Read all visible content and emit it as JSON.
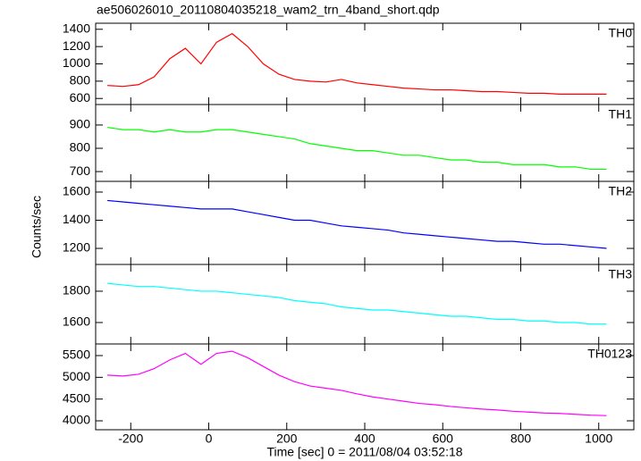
{
  "title": "ae506026010_20110804035218_wam2_trn_4band_short.qdp",
  "x_label": "Time [sec] 0 = 2011/08/04 03:52:18",
  "y_label": "Counts/sec",
  "xlim": [
    -290,
    1090
  ],
  "xticks": [
    -200,
    0,
    200,
    400,
    600,
    800,
    1000
  ],
  "x": [
    -260,
    -220,
    -180,
    -140,
    -100,
    -60,
    -20,
    20,
    60,
    100,
    140,
    180,
    220,
    260,
    300,
    340,
    380,
    420,
    460,
    500,
    540,
    580,
    620,
    660,
    700,
    740,
    780,
    820,
    860,
    900,
    940,
    980,
    1020
  ],
  "chart_data": [
    {
      "type": "line",
      "label": "TH0",
      "color": "#ff0000",
      "ylim": [
        530,
        1470
      ],
      "yticks": [
        600,
        800,
        1000,
        1200,
        1400
      ],
      "values": [
        750,
        740,
        760,
        850,
        1060,
        1180,
        1000,
        1250,
        1350,
        1200,
        1000,
        880,
        820,
        800,
        790,
        820,
        780,
        760,
        740,
        720,
        710,
        700,
        700,
        690,
        680,
        680,
        670,
        660,
        660,
        650,
        650,
        650,
        650
      ]
    },
    {
      "type": "line",
      "label": "TH1",
      "color": "#00ff00",
      "ylim": [
        658,
        988
      ],
      "yticks": [
        700,
        800,
        900
      ],
      "values": [
        890,
        880,
        880,
        870,
        880,
        870,
        870,
        880,
        880,
        870,
        860,
        850,
        840,
        820,
        810,
        800,
        790,
        790,
        780,
        770,
        770,
        760,
        750,
        750,
        740,
        740,
        730,
        730,
        730,
        720,
        720,
        710,
        710
      ]
    },
    {
      "type": "line",
      "label": "TH2",
      "color": "#0000ff",
      "ylim": [
        1086,
        1676
      ],
      "yticks": [
        1200,
        1400,
        1600
      ],
      "values": [
        1540,
        1530,
        1520,
        1510,
        1500,
        1490,
        1480,
        1480,
        1480,
        1460,
        1440,
        1420,
        1400,
        1400,
        1380,
        1360,
        1350,
        1340,
        1330,
        1310,
        1300,
        1290,
        1280,
        1270,
        1260,
        1250,
        1250,
        1240,
        1230,
        1230,
        1220,
        1210,
        1200
      ]
    },
    {
      "type": "line",
      "label": "TH3",
      "color": "#00ffff",
      "ylim": [
        1463,
        1971
      ],
      "yticks": [
        1600,
        1800
      ],
      "values": [
        1850,
        1840,
        1830,
        1830,
        1820,
        1810,
        1800,
        1800,
        1790,
        1780,
        1770,
        1760,
        1740,
        1730,
        1720,
        1700,
        1690,
        1680,
        1680,
        1670,
        1660,
        1650,
        1640,
        1640,
        1630,
        1620,
        1620,
        1610,
        1610,
        1600,
        1600,
        1590,
        1590
      ]
    },
    {
      "type": "line",
      "label": "TH0123",
      "color": "#ff00ff",
      "ylim": [
        3795,
        5767
      ],
      "yticks": [
        4000,
        4500,
        5000,
        5500
      ],
      "values": [
        5050,
        5030,
        5070,
        5200,
        5400,
        5550,
        5300,
        5550,
        5600,
        5450,
        5250,
        5050,
        4900,
        4800,
        4750,
        4700,
        4620,
        4550,
        4500,
        4450,
        4400,
        4370,
        4330,
        4300,
        4270,
        4250,
        4220,
        4200,
        4180,
        4170,
        4150,
        4130,
        4120
      ]
    }
  ]
}
